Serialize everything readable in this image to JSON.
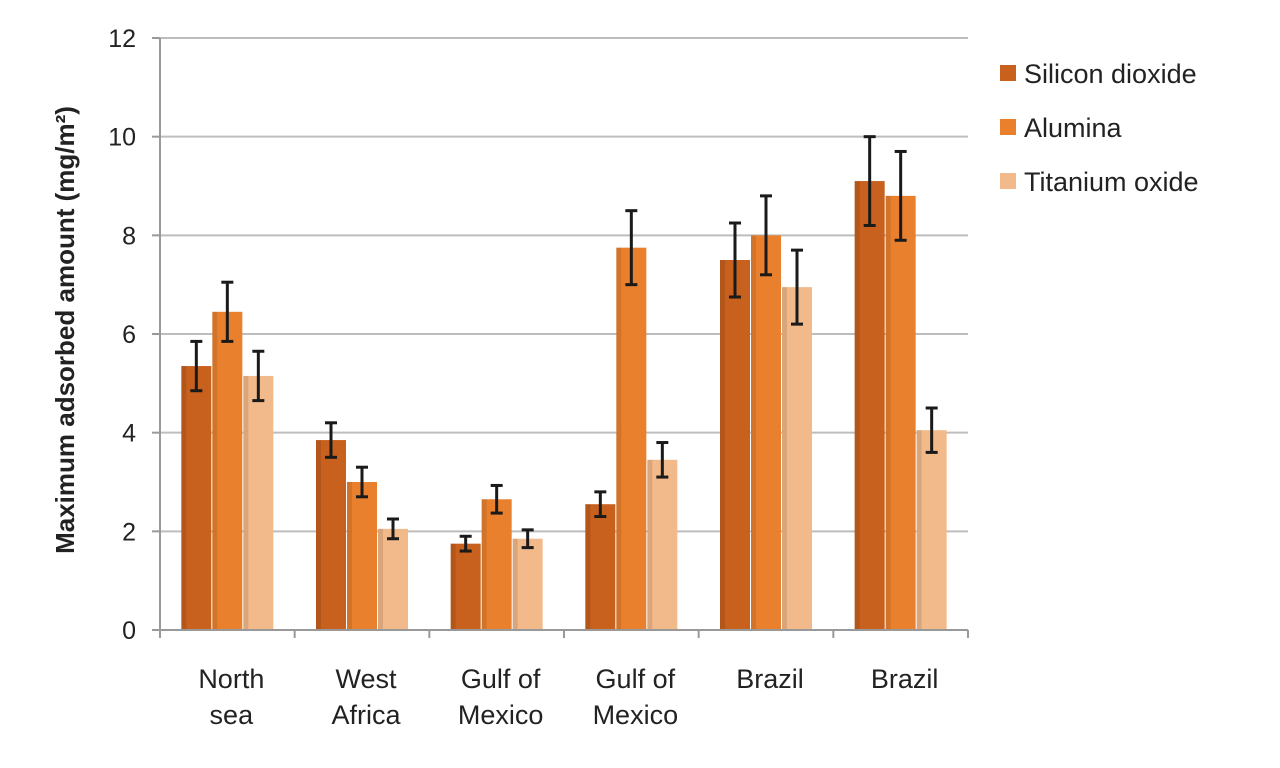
{
  "chart_data": {
    "type": "bar",
    "title": "",
    "xlabel": "",
    "ylabel": "Maximum adsorbed amount (mg/m²)",
    "ylim": [
      0,
      12
    ],
    "yticks": [
      "0",
      "2",
      "4",
      "6",
      "8",
      "10",
      "12"
    ],
    "grid": true,
    "legend": "right",
    "categories": [
      [
        "North",
        "sea"
      ],
      [
        "West",
        "Africa"
      ],
      [
        "Gulf of",
        "Mexico"
      ],
      [
        "Gulf of",
        "Mexico"
      ],
      [
        "Brazil"
      ],
      [
        "Brazil"
      ]
    ],
    "series": [
      {
        "name": "Silicon dioxide",
        "color": "#c8601e",
        "values": [
          5.35,
          3.85,
          1.75,
          2.55,
          7.5,
          9.1
        ],
        "errors": [
          0.5,
          0.35,
          0.15,
          0.25,
          0.75,
          0.9
        ]
      },
      {
        "name": "Alumina",
        "color": "#e9802e",
        "values": [
          6.45,
          3.0,
          2.65,
          7.75,
          8.0,
          8.8
        ],
        "errors": [
          0.6,
          0.3,
          0.28,
          0.75,
          0.8,
          0.9
        ]
      },
      {
        "name": "Titanium oxide",
        "color": "#f2b98a",
        "values": [
          5.15,
          2.05,
          1.85,
          3.45,
          6.95,
          4.05
        ],
        "errors": [
          0.5,
          0.2,
          0.18,
          0.35,
          0.75,
          0.45
        ]
      }
    ]
  }
}
